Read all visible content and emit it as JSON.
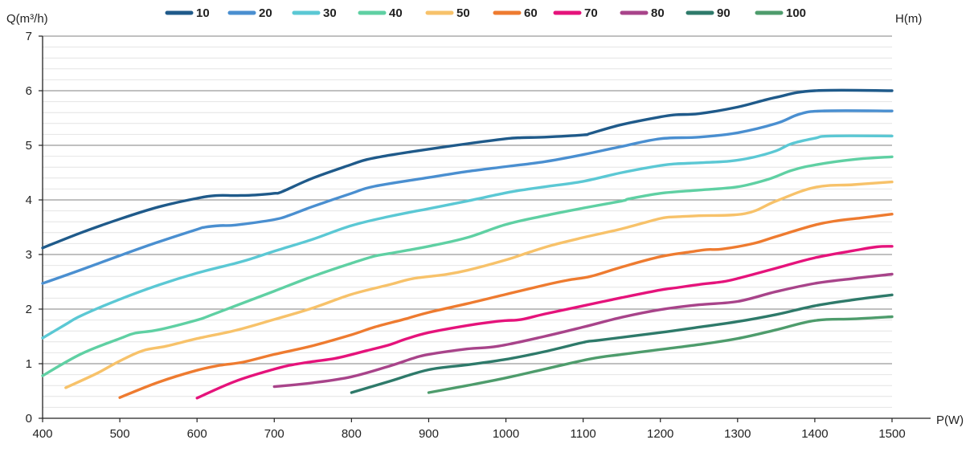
{
  "chart_data": {
    "type": "line",
    "title": "",
    "ylabel": "Q(m³/h)",
    "xlabel": "P(W)",
    "y2label": "H(m)",
    "xlim": [
      400,
      1500
    ],
    "ylim": [
      0,
      7
    ],
    "xticks": [
      400,
      500,
      600,
      700,
      800,
      900,
      1000,
      1100,
      1200,
      1300,
      1400,
      1500
    ],
    "yticks": [
      0,
      1,
      2,
      3,
      4,
      5,
      6,
      7
    ],
    "minor_grid_step": 0.2,
    "grid": true,
    "legend_position": "top",
    "series": [
      {
        "name": "10",
        "color": "#1f5a8a",
        "points": [
          [
            400,
            3.12
          ],
          [
            450,
            3.4
          ],
          [
            500,
            3.65
          ],
          [
            550,
            3.87
          ],
          [
            600,
            4.03
          ],
          [
            625,
            4.08
          ],
          [
            650,
            4.08
          ],
          [
            675,
            4.09
          ],
          [
            700,
            4.12
          ],
          [
            710,
            4.15
          ],
          [
            750,
            4.4
          ],
          [
            800,
            4.65
          ],
          [
            820,
            4.74
          ],
          [
            850,
            4.82
          ],
          [
            900,
            4.93
          ],
          [
            950,
            5.03
          ],
          [
            1000,
            5.12
          ],
          [
            1020,
            5.14
          ],
          [
            1050,
            5.15
          ],
          [
            1100,
            5.19
          ],
          [
            1110,
            5.22
          ],
          [
            1150,
            5.38
          ],
          [
            1200,
            5.52
          ],
          [
            1220,
            5.56
          ],
          [
            1250,
            5.58
          ],
          [
            1300,
            5.7
          ],
          [
            1350,
            5.88
          ],
          [
            1400,
            6.0
          ],
          [
            1500,
            6.0
          ]
        ]
      },
      {
        "name": "20",
        "color": "#4a8fd0",
        "points": [
          [
            400,
            2.47
          ],
          [
            450,
            2.72
          ],
          [
            500,
            2.98
          ],
          [
            550,
            3.23
          ],
          [
            600,
            3.46
          ],
          [
            610,
            3.5
          ],
          [
            630,
            3.53
          ],
          [
            650,
            3.54
          ],
          [
            700,
            3.64
          ],
          [
            720,
            3.72
          ],
          [
            750,
            3.88
          ],
          [
            800,
            4.12
          ],
          [
            830,
            4.25
          ],
          [
            900,
            4.41
          ],
          [
            950,
            4.52
          ],
          [
            1000,
            4.61
          ],
          [
            1050,
            4.7
          ],
          [
            1100,
            4.83
          ],
          [
            1150,
            4.98
          ],
          [
            1200,
            5.12
          ],
          [
            1250,
            5.15
          ],
          [
            1300,
            5.23
          ],
          [
            1350,
            5.4
          ],
          [
            1380,
            5.57
          ],
          [
            1410,
            5.63
          ],
          [
            1500,
            5.63
          ]
        ]
      },
      {
        "name": "30",
        "color": "#5bc8d4",
        "points": [
          [
            400,
            1.47
          ],
          [
            430,
            1.72
          ],
          [
            450,
            1.88
          ],
          [
            500,
            2.18
          ],
          [
            550,
            2.44
          ],
          [
            600,
            2.66
          ],
          [
            650,
            2.84
          ],
          [
            670,
            2.92
          ],
          [
            700,
            3.06
          ],
          [
            750,
            3.28
          ],
          [
            800,
            3.53
          ],
          [
            850,
            3.7
          ],
          [
            900,
            3.84
          ],
          [
            950,
            3.98
          ],
          [
            1000,
            4.13
          ],
          [
            1020,
            4.18
          ],
          [
            1050,
            4.24
          ],
          [
            1100,
            4.34
          ],
          [
            1150,
            4.5
          ],
          [
            1200,
            4.63
          ],
          [
            1220,
            4.66
          ],
          [
            1250,
            4.68
          ],
          [
            1290,
            4.71
          ],
          [
            1320,
            4.78
          ],
          [
            1350,
            4.9
          ],
          [
            1370,
            5.03
          ],
          [
            1400,
            5.13
          ],
          [
            1420,
            5.17
          ],
          [
            1500,
            5.17
          ]
        ]
      },
      {
        "name": "40",
        "color": "#5fd0a3",
        "points": [
          [
            400,
            0.78
          ],
          [
            450,
            1.18
          ],
          [
            500,
            1.46
          ],
          [
            520,
            1.56
          ],
          [
            550,
            1.62
          ],
          [
            600,
            1.8
          ],
          [
            620,
            1.9
          ],
          [
            650,
            2.06
          ],
          [
            700,
            2.33
          ],
          [
            750,
            2.6
          ],
          [
            800,
            2.84
          ],
          [
            830,
            2.97
          ],
          [
            850,
            3.02
          ],
          [
            900,
            3.15
          ],
          [
            950,
            3.31
          ],
          [
            1000,
            3.55
          ],
          [
            1050,
            3.71
          ],
          [
            1100,
            3.85
          ],
          [
            1150,
            3.98
          ],
          [
            1160,
            4.02
          ],
          [
            1200,
            4.12
          ],
          [
            1250,
            4.18
          ],
          [
            1300,
            4.24
          ],
          [
            1340,
            4.38
          ],
          [
            1370,
            4.54
          ],
          [
            1400,
            4.64
          ],
          [
            1450,
            4.74
          ],
          [
            1500,
            4.79
          ]
        ]
      },
      {
        "name": "50",
        "color": "#f7c26a",
        "points": [
          [
            430,
            0.56
          ],
          [
            470,
            0.82
          ],
          [
            500,
            1.05
          ],
          [
            530,
            1.24
          ],
          [
            560,
            1.32
          ],
          [
            600,
            1.46
          ],
          [
            650,
            1.61
          ],
          [
            700,
            1.81
          ],
          [
            750,
            2.02
          ],
          [
            800,
            2.27
          ],
          [
            850,
            2.45
          ],
          [
            880,
            2.56
          ],
          [
            920,
            2.63
          ],
          [
            950,
            2.71
          ],
          [
            1000,
            2.9
          ],
          [
            1030,
            3.04
          ],
          [
            1060,
            3.17
          ],
          [
            1100,
            3.31
          ],
          [
            1150,
            3.47
          ],
          [
            1200,
            3.66
          ],
          [
            1220,
            3.69
          ],
          [
            1250,
            3.71
          ],
          [
            1310,
            3.75
          ],
          [
            1350,
            3.98
          ],
          [
            1400,
            4.23
          ],
          [
            1450,
            4.28
          ],
          [
            1500,
            4.33
          ]
        ]
      },
      {
        "name": "60",
        "color": "#ee7b30",
        "points": [
          [
            500,
            0.38
          ],
          [
            550,
            0.66
          ],
          [
            600,
            0.88
          ],
          [
            630,
            0.97
          ],
          [
            660,
            1.03
          ],
          [
            700,
            1.17
          ],
          [
            750,
            1.33
          ],
          [
            800,
            1.53
          ],
          [
            830,
            1.67
          ],
          [
            870,
            1.82
          ],
          [
            900,
            1.94
          ],
          [
            950,
            2.1
          ],
          [
            1000,
            2.27
          ],
          [
            1050,
            2.44
          ],
          [
            1080,
            2.53
          ],
          [
            1110,
            2.6
          ],
          [
            1150,
            2.77
          ],
          [
            1200,
            2.96
          ],
          [
            1240,
            3.05
          ],
          [
            1260,
            3.09
          ],
          [
            1280,
            3.1
          ],
          [
            1320,
            3.2
          ],
          [
            1350,
            3.33
          ],
          [
            1400,
            3.54
          ],
          [
            1430,
            3.62
          ],
          [
            1460,
            3.67
          ],
          [
            1500,
            3.74
          ]
        ]
      },
      {
        "name": "70",
        "color": "#e5137b",
        "points": [
          [
            600,
            0.37
          ],
          [
            650,
            0.68
          ],
          [
            700,
            0.9
          ],
          [
            720,
            0.97
          ],
          [
            750,
            1.04
          ],
          [
            780,
            1.1
          ],
          [
            820,
            1.24
          ],
          [
            850,
            1.35
          ],
          [
            870,
            1.45
          ],
          [
            900,
            1.57
          ],
          [
            950,
            1.7
          ],
          [
            980,
            1.76
          ],
          [
            1000,
            1.79
          ],
          [
            1020,
            1.81
          ],
          [
            1050,
            1.91
          ],
          [
            1100,
            2.06
          ],
          [
            1150,
            2.21
          ],
          [
            1200,
            2.35
          ],
          [
            1220,
            2.39
          ],
          [
            1250,
            2.45
          ],
          [
            1280,
            2.5
          ],
          [
            1300,
            2.56
          ],
          [
            1350,
            2.75
          ],
          [
            1400,
            2.94
          ],
          [
            1450,
            3.07
          ],
          [
            1480,
            3.14
          ],
          [
            1500,
            3.15
          ]
        ]
      },
      {
        "name": "80",
        "color": "#a8448a",
        "points": [
          [
            700,
            0.58
          ],
          [
            750,
            0.65
          ],
          [
            800,
            0.76
          ],
          [
            850,
            0.96
          ],
          [
            880,
            1.1
          ],
          [
            900,
            1.17
          ],
          [
            950,
            1.27
          ],
          [
            990,
            1.32
          ],
          [
            1050,
            1.5
          ],
          [
            1100,
            1.67
          ],
          [
            1150,
            1.85
          ],
          [
            1200,
            1.99
          ],
          [
            1250,
            2.08
          ],
          [
            1300,
            2.14
          ],
          [
            1350,
            2.32
          ],
          [
            1400,
            2.47
          ],
          [
            1450,
            2.56
          ],
          [
            1500,
            2.64
          ]
        ]
      },
      {
        "name": "90",
        "color": "#2e7a6a",
        "points": [
          [
            800,
            0.47
          ],
          [
            850,
            0.68
          ],
          [
            900,
            0.89
          ],
          [
            950,
            0.98
          ],
          [
            1000,
            1.08
          ],
          [
            1050,
            1.22
          ],
          [
            1100,
            1.39
          ],
          [
            1120,
            1.43
          ],
          [
            1200,
            1.57
          ],
          [
            1250,
            1.67
          ],
          [
            1300,
            1.77
          ],
          [
            1350,
            1.9
          ],
          [
            1400,
            2.06
          ],
          [
            1450,
            2.17
          ],
          [
            1500,
            2.26
          ]
        ]
      },
      {
        "name": "100",
        "color": "#4e9c6c",
        "points": [
          [
            900,
            0.47
          ],
          [
            950,
            0.6
          ],
          [
            1000,
            0.74
          ],
          [
            1050,
            0.9
          ],
          [
            1110,
            1.09
          ],
          [
            1150,
            1.17
          ],
          [
            1200,
            1.26
          ],
          [
            1250,
            1.35
          ],
          [
            1300,
            1.46
          ],
          [
            1350,
            1.62
          ],
          [
            1400,
            1.79
          ],
          [
            1450,
            1.82
          ],
          [
            1500,
            1.86
          ]
        ]
      }
    ]
  }
}
